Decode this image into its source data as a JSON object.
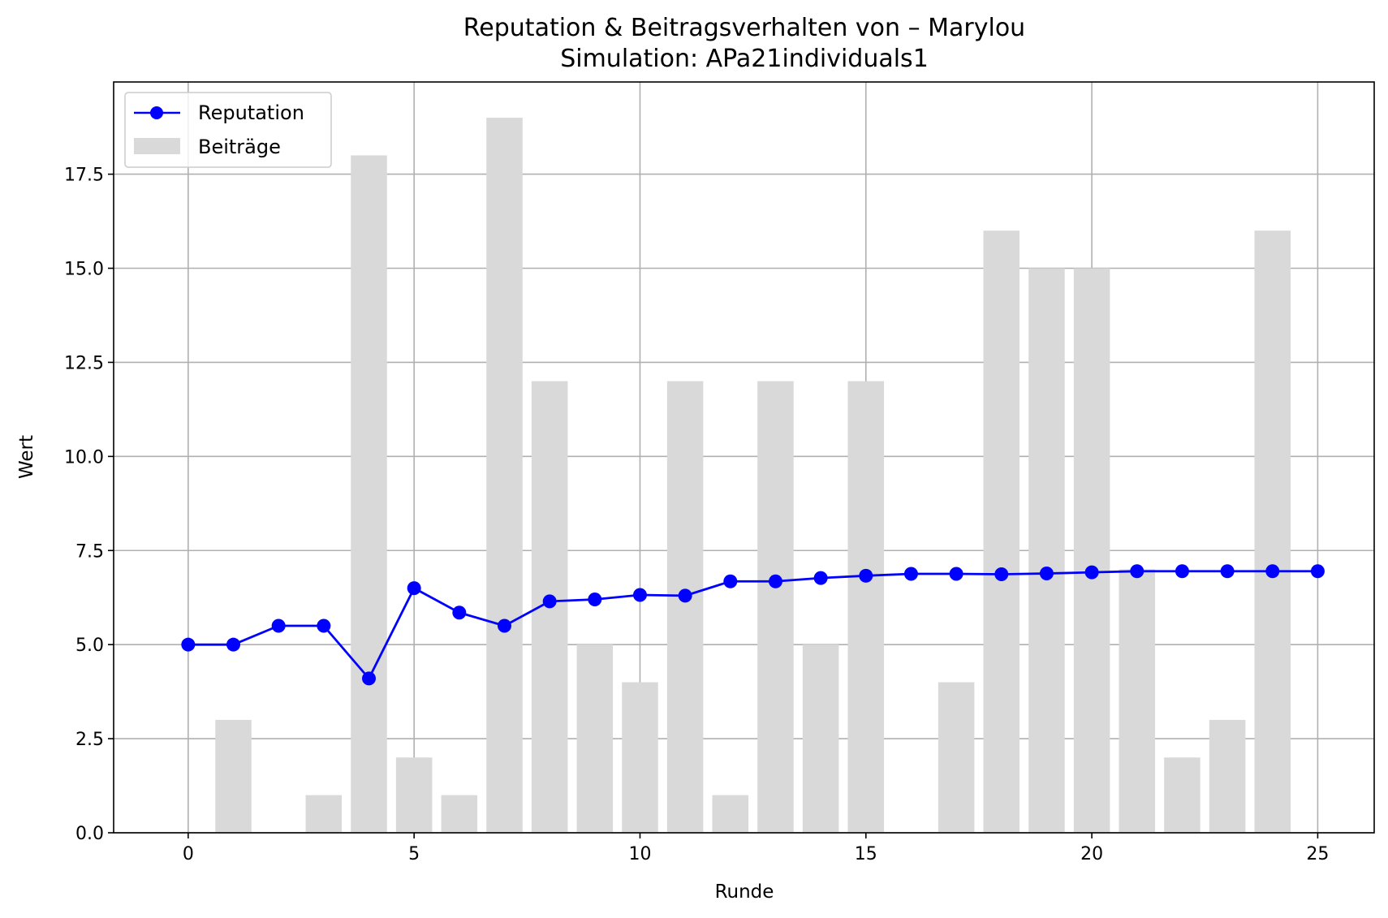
{
  "chart_data": {
    "type": "bar+line",
    "title": "Reputation & Beitragsverhalten von – Marylou",
    "subtitle": "Simulation: APa21individuals1",
    "xlabel": "Runde",
    "ylabel": "Wert",
    "xlim": [
      -1.65,
      26.25
    ],
    "ylim": [
      0,
      19.95
    ],
    "x_ticks": [
      0,
      5,
      10,
      15,
      20,
      25
    ],
    "x_tick_labels": [
      "0",
      "5",
      "10",
      "15",
      "20",
      "25"
    ],
    "y_ticks": [
      0,
      2.5,
      5,
      7.5,
      10,
      12.5,
      15,
      17.5
    ],
    "y_tick_labels": [
      "0.0",
      "2.5",
      "5.0",
      "7.5",
      "10.0",
      "12.5",
      "15.0",
      "17.5"
    ],
    "grid": true,
    "legend_position": "top-left",
    "x": [
      0,
      1,
      2,
      3,
      4,
      5,
      6,
      7,
      8,
      9,
      10,
      11,
      12,
      13,
      14,
      15,
      16,
      17,
      18,
      19,
      20,
      21,
      22,
      23,
      24,
      25
    ],
    "series": [
      {
        "name": "Reputation",
        "type": "line",
        "color": "#0000ff",
        "values": [
          5.0,
          5.0,
          5.5,
          5.5,
          4.1,
          6.5,
          5.85,
          5.5,
          6.15,
          6.2,
          6.32,
          6.3,
          6.68,
          6.68,
          6.77,
          6.83,
          6.88,
          6.88,
          6.87,
          6.89,
          6.92,
          6.95,
          6.95,
          6.95,
          6.95,
          6.95
        ]
      },
      {
        "name": "Beiträge",
        "type": "bar",
        "color": "#d9d9d9",
        "values": [
          0,
          3,
          0,
          1,
          18,
          2,
          1,
          19,
          12,
          5,
          4,
          12,
          1,
          12,
          5,
          12,
          0,
          4,
          16,
          15,
          15,
          7,
          2,
          3,
          16,
          0
        ]
      }
    ]
  }
}
